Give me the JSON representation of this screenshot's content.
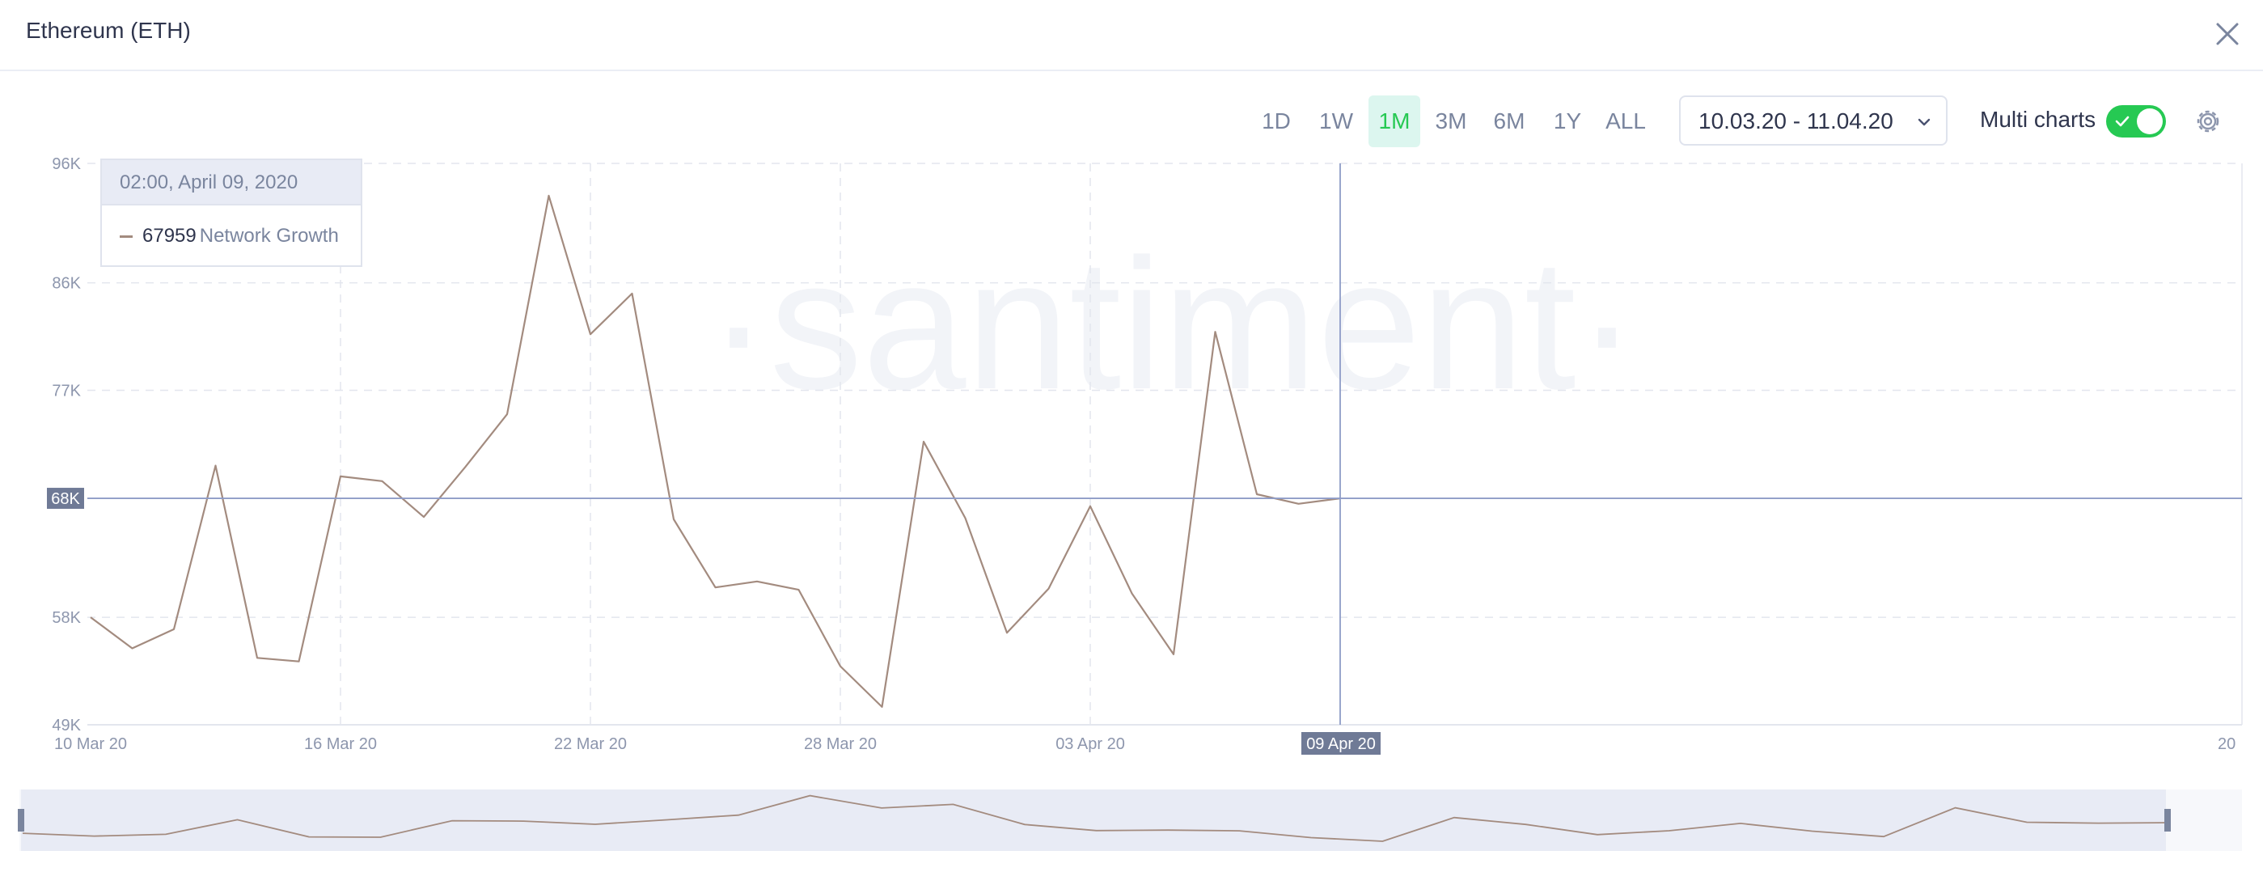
{
  "window": {
    "title": "Ethereum (ETH)"
  },
  "ranges": [
    "1D",
    "1W",
    "1M",
    "3M",
    "6M",
    "1Y",
    "ALL"
  ],
  "active_range": "1M",
  "date_range": "10.03.20 - 11.04.20",
  "multi_charts": {
    "label": "Multi charts",
    "on": true
  },
  "watermark": "·santiment·",
  "tooltip": {
    "date": "02:00, April 09, 2020",
    "value": "67959",
    "series": "Network Growth"
  },
  "crosshair": {
    "y_label": "68K",
    "x_label": "09 Apr 20"
  },
  "colors": {
    "line": "#a38b7f",
    "accent": "#26c953",
    "crosshair": "#8e9cc7",
    "grid": "#e3e6ee"
  },
  "chart_data": {
    "type": "line",
    "ylim": [
      49000,
      96000
    ],
    "yticks": [
      {
        "value": 49000,
        "label": "49K"
      },
      {
        "value": 58000,
        "label": "58K"
      },
      {
        "value": 68000,
        "label": "68K"
      },
      {
        "value": 77000,
        "label": "77K"
      },
      {
        "value": 86000,
        "label": "86K"
      },
      {
        "value": 96000,
        "label": "96K"
      }
    ],
    "xticks": [
      {
        "day": 0,
        "label": "10 Mar 20"
      },
      {
        "day": 6,
        "label": "16 Mar 20"
      },
      {
        "day": 12,
        "label": "22 Mar 20"
      },
      {
        "day": 18,
        "label": "28 Mar 20"
      },
      {
        "day": 24,
        "label": "03 Apr 20"
      },
      {
        "day": 31,
        "label": "20"
      }
    ],
    "series": [
      {
        "name": "Network Growth",
        "points": [
          [
            "10 Mar 20",
            58000
          ],
          [
            "11 Mar 20",
            55400
          ],
          [
            "12 Mar 20",
            57000
          ],
          [
            "13 Mar 20",
            70700
          ],
          [
            "14 Mar 20",
            54600
          ],
          [
            "15 Mar 20",
            54300
          ],
          [
            "16 Mar 20",
            69800
          ],
          [
            "17 Mar 20",
            69400
          ],
          [
            "18 Mar 20",
            66400
          ],
          [
            "19 Mar 20",
            70600
          ],
          [
            "20 Mar 20",
            75000
          ],
          [
            "21 Mar 20",
            93300
          ],
          [
            "22 Mar 20",
            81700
          ],
          [
            "23 Mar 20",
            85100
          ],
          [
            "24 Mar 20",
            66200
          ],
          [
            "25 Mar 20",
            60500
          ],
          [
            "26 Mar 20",
            61000
          ],
          [
            "27 Mar 20",
            60300
          ],
          [
            "28 Mar 20",
            53900
          ],
          [
            "29 Mar 20",
            50500
          ],
          [
            "30 Mar 20",
            72700
          ],
          [
            "31 Mar 20",
            66300
          ],
          [
            "01 Apr 20",
            56700
          ],
          [
            "02 Apr 20",
            60400
          ],
          [
            "03 Apr 20",
            67300
          ],
          [
            "04 Apr 20",
            60000
          ],
          [
            "05 Apr 20",
            54900
          ],
          [
            "06 Apr 20",
            81900
          ],
          [
            "07 Apr 20",
            68300
          ],
          [
            "08 Apr 20",
            67500
          ],
          [
            "09 Apr 20",
            67959
          ]
        ]
      }
    ]
  }
}
